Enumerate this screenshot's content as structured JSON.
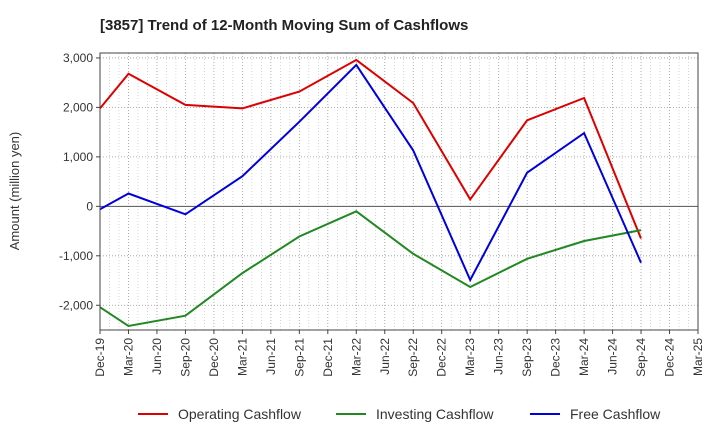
{
  "chart_data": {
    "type": "line",
    "title": "[3857]  Trend of 12-Month Moving Sum of Cashflows",
    "xlabel": "",
    "ylabel": "Amount (million yen)",
    "ylim": [
      -2500,
      3100
    ],
    "yticks": [
      3000,
      2000,
      1000,
      0,
      -1000,
      -2000
    ],
    "ytick_labels": [
      "3,000",
      "2,000",
      "1,000",
      "0",
      "-1,000",
      "-2,000"
    ],
    "categories": [
      "Dec-19",
      "Mar-20",
      "Jun-20",
      "Sep-20",
      "Dec-20",
      "Mar-21",
      "Jun-21",
      "Sep-21",
      "Dec-21",
      "Mar-22",
      "Jun-22",
      "Sep-22",
      "Dec-22",
      "Mar-23",
      "Jun-23",
      "Sep-23",
      "Dec-23",
      "Mar-24",
      "Jun-24",
      "Sep-24",
      "Dec-24",
      "Mar-25"
    ],
    "grid": true,
    "legend_position": "bottom",
    "series": [
      {
        "name": "Operating Cashflow",
        "color": "#dd0000",
        "points": [
          [
            "Dec-19",
            1980
          ],
          [
            "Mar-20",
            2680
          ],
          [
            "Sep-20",
            2050
          ],
          [
            "Mar-21",
            1980
          ],
          [
            "Sep-21",
            2320
          ],
          [
            "Mar-22",
            2960
          ],
          [
            "Sep-22",
            2090
          ],
          [
            "Mar-23",
            140
          ],
          [
            "Sep-23",
            1740
          ],
          [
            "Mar-24",
            2190
          ],
          [
            "Sep-24",
            -650
          ]
        ]
      },
      {
        "name": "Investing Cashflow",
        "color": "#228822",
        "points": [
          [
            "Dec-19",
            -2040
          ],
          [
            "Mar-20",
            -2420
          ],
          [
            "Sep-20",
            -2210
          ],
          [
            "Mar-21",
            -1350
          ],
          [
            "Sep-21",
            -610
          ],
          [
            "Mar-22",
            -100
          ],
          [
            "Sep-22",
            -960
          ],
          [
            "Mar-23",
            -1630
          ],
          [
            "Sep-23",
            -1060
          ],
          [
            "Mar-24",
            -700
          ],
          [
            "Sep-24",
            -480
          ]
        ]
      },
      {
        "name": "Free Cashflow",
        "color": "#0000dd",
        "points": [
          [
            "Dec-19",
            -60
          ],
          [
            "Mar-20",
            260
          ],
          [
            "Sep-20",
            -160
          ],
          [
            "Mar-21",
            610
          ],
          [
            "Sep-21",
            1710
          ],
          [
            "Mar-22",
            2860
          ],
          [
            "Sep-22",
            1130
          ],
          [
            "Mar-23",
            -1490
          ],
          [
            "Sep-23",
            680
          ],
          [
            "Mar-24",
            1480
          ],
          [
            "Sep-24",
            -1140
          ]
        ]
      }
    ]
  }
}
